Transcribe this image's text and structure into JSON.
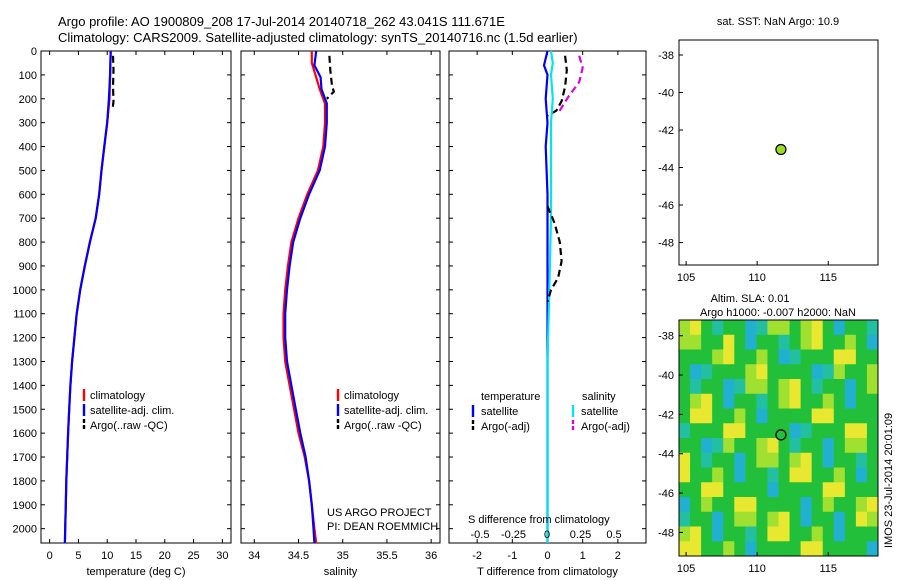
{
  "header": {
    "line1": "Argo profile: AO 1900809_208 17-Jul-2014 20140718_262 43.041S 111.671E",
    "line2": "Climatology: CARS2009. Satellite-adjusted climatology: synTS_20140716.nc (1.5d earlier)"
  },
  "colors": {
    "climatology": "#ff0000",
    "satellite": "#0000ff",
    "argo": "#000000",
    "salinity_satellite": "#00e5ee",
    "salinity_argo": "#e000e0",
    "argo_dot": "#99dd22"
  },
  "footer": {
    "project": "US ARGO PROJECT",
    "pi": "PI: DEAN ROEMMICH",
    "timestamp": "IMOS 23-Jul-2014 20:01:09"
  },
  "chart_data": [
    {
      "id": "temperature",
      "type": "line",
      "xlabel": "temperature (deg C)",
      "xlim": [
        -1.5,
        31.5
      ],
      "xticks": [
        0,
        5,
        10,
        15,
        20,
        25,
        30
      ],
      "ylim": [
        2060,
        0
      ],
      "yticks": [
        0,
        100,
        200,
        300,
        400,
        500,
        600,
        700,
        800,
        900,
        1000,
        1100,
        1200,
        1300,
        1400,
        1500,
        1600,
        1700,
        1800,
        1900,
        2000
      ],
      "legend": [
        "climatology",
        "satellite-adj. clim.",
        "Argo(..raw -QC)"
      ],
      "series": [
        {
          "name": "climatology",
          "style": "solid",
          "points": [
            [
              10.6,
              0
            ],
            [
              10.5,
              100
            ],
            [
              10.4,
              200
            ],
            [
              10.0,
              300
            ],
            [
              9.5,
              400
            ],
            [
              9.0,
              500
            ],
            [
              8.6,
              600
            ],
            [
              8.0,
              700
            ],
            [
              7.0,
              800
            ],
            [
              6.1,
              900
            ],
            [
              5.3,
              1000
            ],
            [
              4.7,
              1100
            ],
            [
              4.3,
              1200
            ],
            [
              3.9,
              1300
            ],
            [
              3.6,
              1400
            ],
            [
              3.4,
              1500
            ],
            [
              3.2,
              1600
            ],
            [
              3.05,
              1700
            ],
            [
              2.9,
              1800
            ],
            [
              2.8,
              1900
            ],
            [
              2.7,
              2000
            ],
            [
              2.65,
              2060
            ]
          ]
        },
        {
          "name": "satellite-adj. clim.",
          "style": "solid",
          "points": [
            [
              10.6,
              0
            ],
            [
              10.5,
              100
            ],
            [
              10.3,
              200
            ],
            [
              10.0,
              300
            ],
            [
              9.5,
              400
            ],
            [
              9.0,
              500
            ],
            [
              8.6,
              600
            ],
            [
              8.0,
              700
            ],
            [
              7.0,
              800
            ],
            [
              6.1,
              900
            ],
            [
              5.3,
              1000
            ],
            [
              4.7,
              1100
            ],
            [
              4.3,
              1200
            ],
            [
              3.9,
              1300
            ],
            [
              3.6,
              1400
            ],
            [
              3.4,
              1500
            ],
            [
              3.2,
              1600
            ],
            [
              3.05,
              1700
            ],
            [
              2.9,
              1800
            ],
            [
              2.8,
              1900
            ],
            [
              2.7,
              2000
            ],
            [
              2.65,
              2060
            ]
          ]
        },
        {
          "name": "Argo(..raw -QC)",
          "style": "dashed",
          "points": [
            [
              11.0,
              20
            ],
            [
              11.1,
              80
            ],
            [
              11.0,
              150
            ],
            [
              11.1,
              210
            ],
            [
              10.9,
              250
            ]
          ]
        }
      ]
    },
    {
      "id": "salinity",
      "type": "line",
      "xlabel": "salinity",
      "xlim": [
        33.85,
        36.1
      ],
      "xticks": [
        34,
        34.5,
        35,
        35.5,
        36
      ],
      "ylim": [
        2060,
        0
      ],
      "legend": [
        "climatology",
        "satellite-adj. clim.",
        "Argo(..raw -QC)"
      ],
      "series": [
        {
          "name": "climatology",
          "style": "solid",
          "points": [
            [
              34.65,
              0
            ],
            [
              34.65,
              50
            ],
            [
              34.7,
              110
            ],
            [
              34.74,
              160
            ],
            [
              34.8,
              220
            ],
            [
              34.8,
              300
            ],
            [
              34.78,
              400
            ],
            [
              34.72,
              500
            ],
            [
              34.6,
              600
            ],
            [
              34.5,
              700
            ],
            [
              34.42,
              800
            ],
            [
              34.38,
              900
            ],
            [
              34.35,
              1000
            ],
            [
              34.33,
              1100
            ],
            [
              34.33,
              1200
            ],
            [
              34.35,
              1300
            ],
            [
              34.4,
              1400
            ],
            [
              34.45,
              1500
            ],
            [
              34.5,
              1600
            ],
            [
              34.57,
              1700
            ],
            [
              34.62,
              1800
            ],
            [
              34.65,
              1900
            ],
            [
              34.68,
              2000
            ],
            [
              34.7,
              2060
            ]
          ]
        },
        {
          "name": "satellite-adj. clim.",
          "style": "solid",
          "points": [
            [
              34.7,
              0
            ],
            [
              34.68,
              60
            ],
            [
              34.75,
              110
            ],
            [
              34.76,
              160
            ],
            [
              34.82,
              220
            ],
            [
              34.82,
              300
            ],
            [
              34.8,
              400
            ],
            [
              34.74,
              500
            ],
            [
              34.62,
              600
            ],
            [
              34.52,
              700
            ],
            [
              34.44,
              800
            ],
            [
              34.4,
              900
            ],
            [
              34.37,
              1000
            ],
            [
              34.35,
              1100
            ],
            [
              34.35,
              1200
            ],
            [
              34.37,
              1300
            ],
            [
              34.42,
              1400
            ],
            [
              34.47,
              1500
            ],
            [
              34.52,
              1600
            ],
            [
              34.58,
              1700
            ],
            [
              34.62,
              1800
            ],
            [
              34.65,
              1900
            ],
            [
              34.67,
              2000
            ],
            [
              34.68,
              2060
            ]
          ]
        },
        {
          "name": "Argo(..raw -QC)",
          "style": "dashed",
          "points": [
            [
              34.85,
              20
            ],
            [
              34.86,
              80
            ],
            [
              34.88,
              150
            ],
            [
              34.9,
              170
            ],
            [
              34.82,
              200
            ]
          ]
        }
      ]
    },
    {
      "id": "difference",
      "type": "line",
      "xlabel": "T difference from climatology",
      "x2label": "S difference from climatology",
      "xlim": [
        -2.8,
        2.8
      ],
      "xticks": [
        -2,
        -1,
        0,
        1,
        2
      ],
      "x2ticks": [
        -0.5,
        -0.25,
        0,
        0.25,
        0.5
      ],
      "x2tick_labels": [
        "-0.5",
        "-0.25",
        "0",
        "0.25",
        "0.5"
      ],
      "ylim": [
        2060,
        0
      ],
      "legend_temperature_title": "temperature",
      "legend_salinity_title": "salinity",
      "legend": [
        "satellite",
        "Argo(-adj)",
        "satellite",
        "Argo(-adj)"
      ],
      "series": [
        {
          "name": "satellite",
          "group": "temperature",
          "style": "solid",
          "points": [
            [
              0.0,
              0
            ],
            [
              -0.1,
              60
            ],
            [
              0.0,
              100
            ],
            [
              -0.05,
              200
            ],
            [
              0.0,
              300
            ],
            [
              -0.05,
              400
            ],
            [
              0.0,
              600
            ],
            [
              0.0,
              900
            ],
            [
              0.0,
              1200
            ],
            [
              0.0,
              1500
            ],
            [
              0.0,
              1800
            ],
            [
              0.0,
              2060
            ]
          ]
        },
        {
          "name": "Argo(-adj)",
          "group": "temperature",
          "style": "dashed",
          "points": [
            [
              0.5,
              20
            ],
            [
              0.55,
              80
            ],
            [
              0.5,
              150
            ],
            [
              0.4,
              210
            ],
            [
              0.25,
              250
            ],
            [
              0.0,
              270
            ]
          ]
        },
        {
          "name": "satellite",
          "group": "salinity",
          "style": "solid",
          "points": [
            [
              0.1,
              0
            ],
            [
              0.15,
              50
            ],
            [
              0.1,
              100
            ],
            [
              0.15,
              200
            ],
            [
              0.1,
              300
            ],
            [
              0.1,
              500
            ],
            [
              0.1,
              700
            ],
            [
              0.05,
              1000
            ],
            [
              0.0,
              1300
            ],
            [
              0.0,
              1600
            ],
            [
              0.0,
              2060
            ]
          ]
        },
        {
          "name": "Argo(-adj)",
          "group": "salinity",
          "style": "dashed",
          "points": [
            [
              0.9,
              20
            ],
            [
              1.0,
              70
            ],
            [
              0.9,
              130
            ],
            [
              0.6,
              190
            ],
            [
              0.3,
              260
            ]
          ]
        }
      ],
      "extra_curves": [
        {
          "color": "#000000",
          "style": "dashed",
          "points": [
            [
              0.0,
              650
            ],
            [
              0.2,
              720
            ],
            [
              0.35,
              800
            ],
            [
              0.4,
              880
            ],
            [
              0.3,
              950
            ],
            [
              0.1,
              1000
            ],
            [
              0.0,
              1050
            ]
          ]
        }
      ]
    },
    {
      "id": "sst_map",
      "type": "scatter",
      "title": "sat. SST: NaN Argo: 10.9",
      "xlim": [
        104.5,
        118.5
      ],
      "ylim": [
        -49.2,
        -37.2
      ],
      "xticks": [
        105,
        110,
        115
      ],
      "yticks": [
        -38,
        -40,
        -42,
        -44,
        -46,
        -48
      ],
      "points": [
        [
          111.671,
          -43.041
        ]
      ]
    },
    {
      "id": "sla_map",
      "type": "heatmap",
      "title1": "Altim. SLA: 0.01",
      "title2": "Argo h1000: -0.007 h2000: NaN",
      "xlim": [
        104.5,
        118.5
      ],
      "ylim": [
        -49.2,
        -37.2
      ],
      "xticks": [
        105,
        110,
        115
      ],
      "yticks": [
        -38,
        -40,
        -42,
        -44,
        -46,
        -48
      ],
      "points": [
        [
          111.671,
          -43.041
        ]
      ]
    }
  ]
}
